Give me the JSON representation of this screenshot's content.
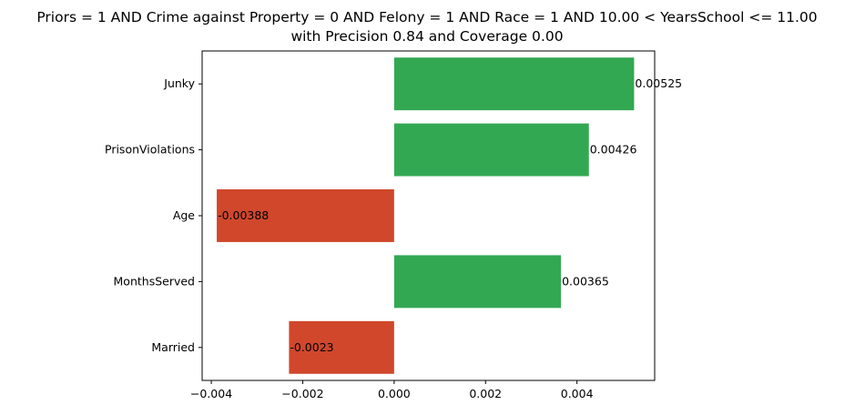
{
  "chart_data": {
    "type": "bar",
    "orientation": "horizontal",
    "title_lines": [
      "Priors = 1 AND Crime against Property = 0 AND Felony = 1 AND Race = 1 AND 10.00 < YearsSchool <= 11.00",
      "with Precision 0.84 and Coverage 0.00"
    ],
    "categories": [
      "Junky",
      "PrisonViolations",
      "Age",
      "MonthsServed",
      "Married"
    ],
    "values": [
      0.00525,
      0.00426,
      -0.00388,
      0.00365,
      -0.0023
    ],
    "value_labels": [
      "0.00525",
      "0.00426",
      "-0.00388",
      "0.00365",
      "-0.0023"
    ],
    "xlim": [
      -0.0042,
      0.0057
    ],
    "xticks": [
      -0.004,
      -0.002,
      0.0,
      0.002,
      0.004
    ],
    "xtick_labels": [
      "−0.004",
      "−0.002",
      "0.000",
      "0.002",
      "0.004"
    ],
    "xlabel": "",
    "ylabel": "",
    "grid": false,
    "colors": {
      "positive": "#33a853",
      "negative": "#d0472b",
      "axis": "#000000"
    }
  }
}
